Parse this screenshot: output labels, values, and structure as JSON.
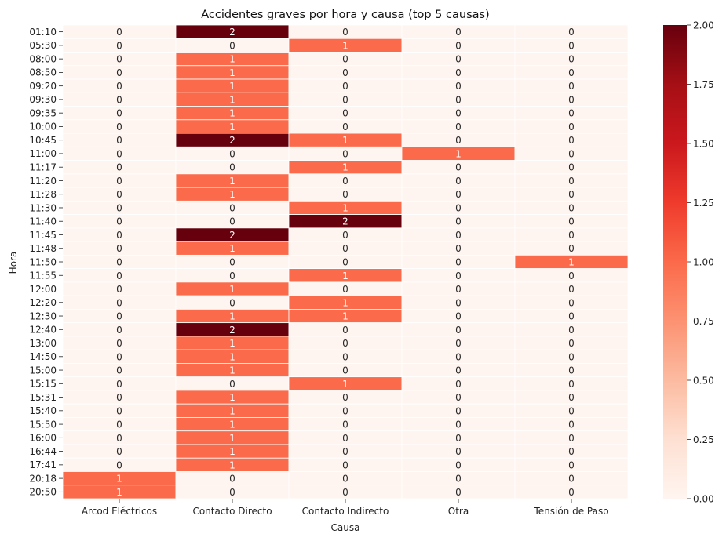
{
  "chart_data": {
    "type": "heatmap",
    "title": "Accidentes graves por hora y causa (top 5 causas)",
    "xlabel": "Causa",
    "ylabel": "Hora",
    "x_categories": [
      "Arcod Eléctricos",
      "Contacto Directo",
      "Contacto Indirecto",
      "Otra",
      "Tensión de Paso"
    ],
    "y_categories": [
      "01:10",
      "05:30",
      "08:00",
      "08:50",
      "09:20",
      "09:30",
      "09:35",
      "10:00",
      "10:45",
      "11:00",
      "11:17",
      "11:20",
      "11:28",
      "11:30",
      "11:40",
      "11:45",
      "11:48",
      "11:50",
      "11:55",
      "12:00",
      "12:20",
      "12:30",
      "12:40",
      "13:00",
      "14:50",
      "15:00",
      "15:15",
      "15:31",
      "15:40",
      "15:50",
      "16:00",
      "16:44",
      "17:41",
      "20:18",
      "20:50"
    ],
    "values": [
      [
        0,
        2,
        0,
        0,
        0
      ],
      [
        0,
        0,
        1,
        0,
        0
      ],
      [
        0,
        1,
        0,
        0,
        0
      ],
      [
        0,
        1,
        0,
        0,
        0
      ],
      [
        0,
        1,
        0,
        0,
        0
      ],
      [
        0,
        1,
        0,
        0,
        0
      ],
      [
        0,
        1,
        0,
        0,
        0
      ],
      [
        0,
        1,
        0,
        0,
        0
      ],
      [
        0,
        2,
        1,
        0,
        0
      ],
      [
        0,
        0,
        0,
        1,
        0
      ],
      [
        0,
        0,
        1,
        0,
        0
      ],
      [
        0,
        1,
        0,
        0,
        0
      ],
      [
        0,
        1,
        0,
        0,
        0
      ],
      [
        0,
        0,
        1,
        0,
        0
      ],
      [
        0,
        0,
        2,
        0,
        0
      ],
      [
        0,
        2,
        0,
        0,
        0
      ],
      [
        0,
        1,
        0,
        0,
        0
      ],
      [
        0,
        0,
        0,
        0,
        1
      ],
      [
        0,
        0,
        1,
        0,
        0
      ],
      [
        0,
        1,
        0,
        0,
        0
      ],
      [
        0,
        0,
        1,
        0,
        0
      ],
      [
        0,
        1,
        1,
        0,
        0
      ],
      [
        0,
        2,
        0,
        0,
        0
      ],
      [
        0,
        1,
        0,
        0,
        0
      ],
      [
        0,
        1,
        0,
        0,
        0
      ],
      [
        0,
        1,
        0,
        0,
        0
      ],
      [
        0,
        0,
        1,
        0,
        0
      ],
      [
        0,
        1,
        0,
        0,
        0
      ],
      [
        0,
        1,
        0,
        0,
        0
      ],
      [
        0,
        1,
        0,
        0,
        0
      ],
      [
        0,
        1,
        0,
        0,
        0
      ],
      [
        0,
        1,
        0,
        0,
        0
      ],
      [
        0,
        1,
        0,
        0,
        0
      ],
      [
        1,
        0,
        0,
        0,
        0
      ],
      [
        1,
        0,
        0,
        0,
        0
      ]
    ],
    "colormap": "Reds",
    "colors": {
      "0": "#fff5f0",
      "1": "#fb6a4a",
      "2": "#67000d"
    },
    "colorbar": {
      "range": [
        0,
        2
      ],
      "ticks": [
        "0.00",
        "0.25",
        "0.50",
        "0.75",
        "1.00",
        "1.25",
        "1.50",
        "1.75",
        "2.00"
      ],
      "stops": [
        "#fff5f0",
        "#fee0d2",
        "#fcbba1",
        "#fc9272",
        "#fb6a4a",
        "#ef3b2c",
        "#cb181d",
        "#a50f15",
        "#67000d"
      ]
    },
    "annotations": true,
    "grid": false,
    "legend": "colorbar-right"
  }
}
